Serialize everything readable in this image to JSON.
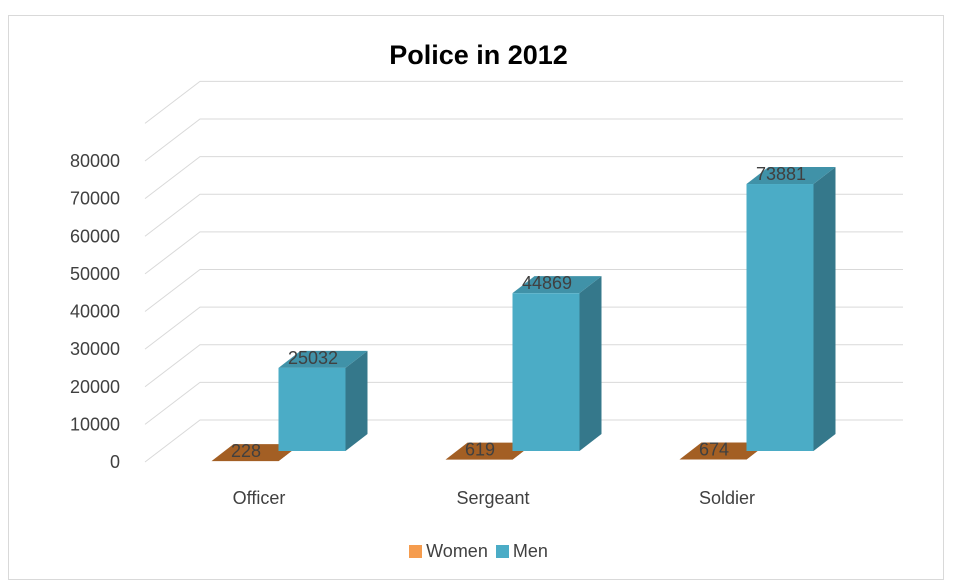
{
  "chart_data": {
    "type": "bar",
    "title": "Police in 2012",
    "categories": [
      "Officer",
      "Sergeant",
      "Soldier"
    ],
    "series": [
      {
        "name": "Women",
        "values": [
          228,
          619,
          674
        ],
        "color": "#c0702a",
        "legend_color": "#f59c4e"
      },
      {
        "name": "Men",
        "values": [
          25032,
          44869,
          73881
        ],
        "color": "#4bacc6",
        "legend_color": "#4bacc6"
      }
    ],
    "ylim": [
      0,
      80000
    ],
    "y_ticks": [
      0,
      10000,
      20000,
      30000,
      40000,
      50000,
      60000,
      70000,
      80000
    ],
    "xlabel": "",
    "ylabel": "",
    "grid": true,
    "legend_position": "bottom",
    "data_labels": true,
    "style": "3d-column"
  }
}
